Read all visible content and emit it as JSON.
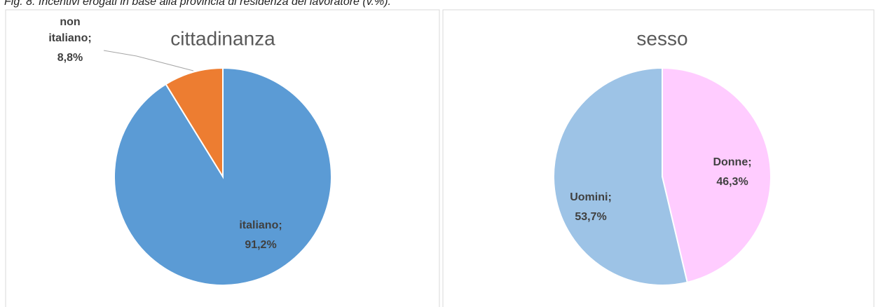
{
  "caption": "Fig. 8. Incentivi erogati in base alla provincia di residenza del lavoratore (v.%).",
  "chart_data": [
    {
      "type": "pie",
      "title": "cittadinanza",
      "categories": [
        "italiano;",
        "non italiano;"
      ],
      "values": [
        91.2,
        8.8
      ],
      "value_labels": [
        "91,2%",
        "8,8%"
      ],
      "colors": [
        "#5b9bd5",
        "#ed7d31"
      ]
    },
    {
      "type": "pie",
      "title": "sesso",
      "categories": [
        "Donne;",
        "Uomini;"
      ],
      "values": [
        46.3,
        53.7
      ],
      "value_labels": [
        "46,3%",
        "53,7%"
      ],
      "colors": [
        "#ffccff",
        "#9dc3e6"
      ]
    }
  ]
}
